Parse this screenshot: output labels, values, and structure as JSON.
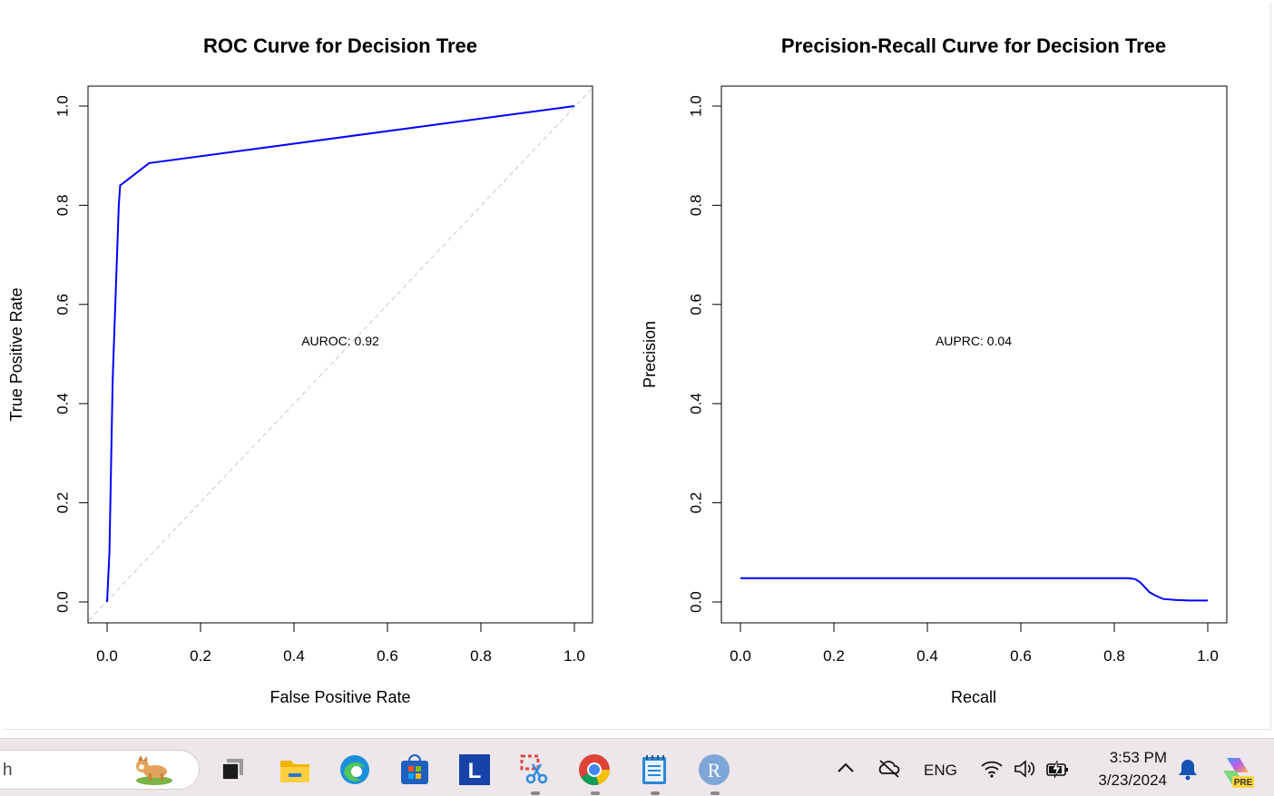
{
  "chart_data": [
    {
      "type": "line",
      "title": "ROC Curve for Decision Tree",
      "xlabel": "False Positive Rate",
      "ylabel": "True Positive Rate",
      "xlim": [
        0,
        1
      ],
      "ylim": [
        0,
        1
      ],
      "xticks": [
        "0.0",
        "0.2",
        "0.4",
        "0.6",
        "0.8",
        "1.0"
      ],
      "yticks": [
        "0.0",
        "0.2",
        "0.4",
        "0.6",
        "0.8",
        "1.0"
      ],
      "annotation": "AUROC: 0.92",
      "series": [
        {
          "color": "#0000ff",
          "x": [
            0.0,
            0.005,
            0.012,
            0.025,
            0.028,
            0.035,
            0.09,
            1.0
          ],
          "y": [
            0.0,
            0.1,
            0.45,
            0.8,
            0.84,
            0.845,
            0.885,
            1.0
          ]
        }
      ],
      "reference_line": {
        "color": "#c8c8c8",
        "style": "dashed",
        "x": [
          0,
          1
        ],
        "y": [
          0,
          1
        ]
      },
      "grid": false
    },
    {
      "type": "line",
      "title": "Precision-Recall Curve for Decision Tree",
      "xlabel": "Recall",
      "ylabel": "Precision",
      "xlim": [
        0,
        1
      ],
      "ylim": [
        0,
        1
      ],
      "xticks": [
        "0.0",
        "0.2",
        "0.4",
        "0.6",
        "0.8",
        "1.0"
      ],
      "yticks": [
        "0.0",
        "0.2",
        "0.4",
        "0.6",
        "0.8",
        "1.0"
      ],
      "annotation": "AUPRC: 0.04",
      "series": [
        {
          "color": "#0000ff",
          "x": [
            0.0,
            0.3,
            0.6,
            0.83,
            0.845,
            0.855,
            0.865,
            0.875,
            0.89,
            0.905,
            0.93,
            0.96,
            1.0
          ],
          "y": [
            0.048,
            0.048,
            0.048,
            0.048,
            0.046,
            0.04,
            0.03,
            0.02,
            0.012,
            0.006,
            0.004,
            0.003,
            0.003
          ]
        }
      ],
      "grid": false
    }
  ],
  "taskbar": {
    "search_text": "h",
    "apps": [
      {
        "name": "task-view",
        "icon": "task-view-icon"
      },
      {
        "name": "file-explorer",
        "icon": "folder-icon"
      },
      {
        "name": "edge",
        "icon": "edge-icon"
      },
      {
        "name": "store",
        "icon": "store-icon"
      },
      {
        "name": "l-app",
        "icon": "l-app-icon",
        "label": "L"
      },
      {
        "name": "snipping-tool",
        "icon": "snip-icon"
      },
      {
        "name": "chrome",
        "icon": "chrome-icon"
      },
      {
        "name": "notepad",
        "icon": "notepad-icon"
      },
      {
        "name": "r-gui",
        "icon": "r-icon",
        "label": "R"
      }
    ],
    "tray": {
      "language": "ENG",
      "time": "3:53 PM",
      "date": "3/23/2024",
      "copilot_badge": "PRE"
    },
    "colors": {
      "folder": "#f4b400",
      "edge": "#1b8fd9",
      "store": "#1f5fbf",
      "l_app": "#1743a8",
      "chrome_red": "#db4437",
      "chrome_yellow": "#f4c20d",
      "chrome_green": "#0f9d58",
      "chrome_blue": "#4285f4",
      "notepad": "#2b87d8",
      "r_icon": "#7ea6d8",
      "bell": "#1552b4"
    }
  }
}
